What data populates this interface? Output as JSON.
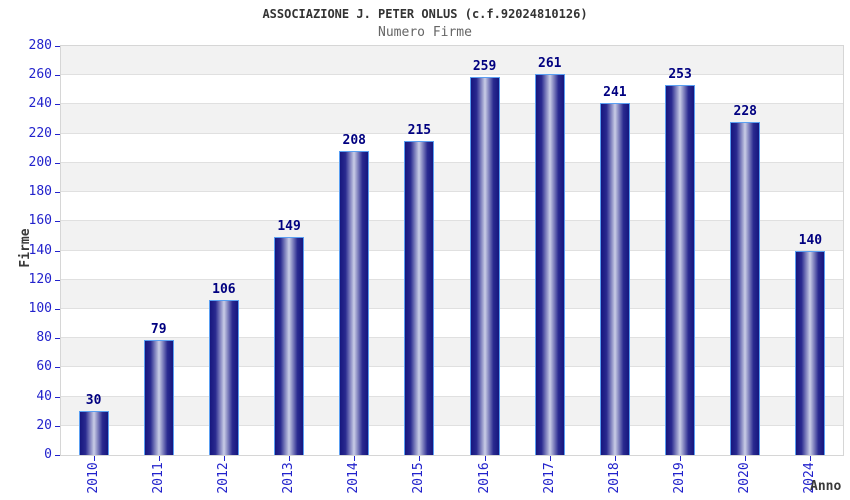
{
  "header": {
    "title": "ASSOCIAZIONE J. PETER ONLUS (c.f.92024810126)",
    "subtitle": "Numero Firme"
  },
  "chart_data": {
    "type": "bar",
    "title": "ASSOCIAZIONE J. PETER ONLUS (c.f.92024810126)",
    "subtitle": "Numero Firme",
    "categories": [
      "2010",
      "2011",
      "2012",
      "2013",
      "2014",
      "2015",
      "2016",
      "2017",
      "2018",
      "2019",
      "2020",
      "2024"
    ],
    "values": [
      30,
      79,
      106,
      149,
      208,
      215,
      259,
      261,
      241,
      253,
      228,
      140
    ],
    "bar_value_labels": [
      "30",
      "79",
      "106",
      "149",
      "208",
      "215",
      "259",
      "261",
      "241",
      "253",
      "228",
      "140"
    ],
    "xlabel": "Anno",
    "ylabel": "Firme",
    "ylim": [
      0,
      280
    ],
    "ytick_step": 20,
    "ytick_labels": [
      "0",
      "20",
      "40",
      "60",
      "80",
      "100",
      "120",
      "140",
      "160",
      "180",
      "200",
      "220",
      "240",
      "260",
      "280"
    ],
    "grid": true,
    "legend": false,
    "colors": {
      "tick_label": "#2222cc",
      "bar_value_label": "#000080",
      "bar_dark": "#16167e",
      "bar_mid": "#2a2a90",
      "bar_light": "#c9cde6",
      "bar_border": "#5a9ff2",
      "band_gray": "#f2f2f2",
      "band_white": "#ffffff",
      "gridline": "#e0e0e0",
      "plot_border": "#d6d6d6",
      "title": "#333333",
      "subtitle": "#666666",
      "axis_title": "#3a3a3a"
    }
  }
}
